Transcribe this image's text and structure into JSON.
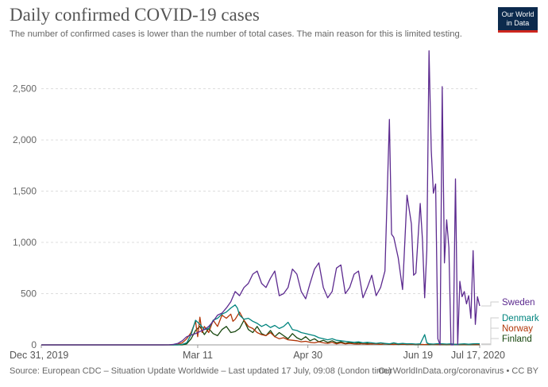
{
  "header": {
    "title": "Daily confirmed COVID-19 cases",
    "subtitle": "The number of confirmed cases is lower than the number of total cases. The main reason for this is limited testing."
  },
  "logo": {
    "line1": "Our World",
    "line2": "in Data"
  },
  "footer": {
    "source": "Source: European CDC – Situation Update Worldwide – Last updated 17 July, 09:08 (London time)",
    "credit": "OurWorldInData.org/coronavirus • CC BY"
  },
  "chart_data": {
    "type": "line",
    "title": "Daily confirmed COVID-19 cases",
    "x_ticks": [
      "Dec 31, 2019",
      "Mar 11",
      "Apr 30",
      "Jun 19",
      "Jul 17, 2020"
    ],
    "y_ticks": [
      "0",
      "500",
      "1,000",
      "1,500",
      "2,000",
      "2,500"
    ],
    "ylim": [
      0,
      2900
    ],
    "x_range_days": [
      0,
      199
    ],
    "grid": "horizontal dashed",
    "legend_placement": "right end labels",
    "x_day_offsets": [
      0,
      71,
      121,
      171,
      199
    ],
    "series": [
      {
        "name": "Sweden",
        "color": "#5c2a8f",
        "points": [
          [
            0,
            0
          ],
          [
            55,
            0
          ],
          [
            58,
            1
          ],
          [
            60,
            5
          ],
          [
            62,
            15
          ],
          [
            64,
            40
          ],
          [
            66,
            80
          ],
          [
            68,
            95
          ],
          [
            70,
            110
          ],
          [
            72,
            130
          ],
          [
            74,
            150
          ],
          [
            76,
            180
          ],
          [
            78,
            230
          ],
          [
            80,
            290
          ],
          [
            82,
            310
          ],
          [
            84,
            360
          ],
          [
            86,
            420
          ],
          [
            88,
            520
          ],
          [
            90,
            480
          ],
          [
            92,
            560
          ],
          [
            94,
            600
          ],
          [
            96,
            690
          ],
          [
            98,
            720
          ],
          [
            100,
            600
          ],
          [
            102,
            560
          ],
          [
            104,
            650
          ],
          [
            106,
            720
          ],
          [
            108,
            480
          ],
          [
            110,
            500
          ],
          [
            112,
            560
          ],
          [
            114,
            740
          ],
          [
            116,
            690
          ],
          [
            118,
            520
          ],
          [
            120,
            450
          ],
          [
            122,
            600
          ],
          [
            124,
            740
          ],
          [
            126,
            800
          ],
          [
            128,
            560
          ],
          [
            130,
            460
          ],
          [
            132,
            520
          ],
          [
            134,
            750
          ],
          [
            136,
            780
          ],
          [
            138,
            500
          ],
          [
            140,
            560
          ],
          [
            142,
            690
          ],
          [
            144,
            720
          ],
          [
            146,
            460
          ],
          [
            148,
            560
          ],
          [
            150,
            680
          ],
          [
            152,
            480
          ],
          [
            154,
            560
          ],
          [
            156,
            720
          ],
          [
            158,
            2200
          ],
          [
            159,
            1080
          ],
          [
            160,
            1050
          ],
          [
            162,
            850
          ],
          [
            164,
            540
          ],
          [
            166,
            1460
          ],
          [
            168,
            1180
          ],
          [
            169,
            680
          ],
          [
            170,
            700
          ],
          [
            172,
            1380
          ],
          [
            173,
            1030
          ],
          [
            174,
            460
          ],
          [
            175,
            920
          ],
          [
            176,
            2870
          ],
          [
            177,
            1900
          ],
          [
            178,
            1480
          ],
          [
            179,
            1570
          ],
          [
            180,
            60
          ],
          [
            181,
            0
          ],
          [
            182,
            2520
          ],
          [
            183,
            800
          ],
          [
            184,
            1220
          ],
          [
            185,
            950
          ],
          [
            186,
            0
          ],
          [
            187,
            0
          ],
          [
            188,
            1620
          ],
          [
            189,
            0
          ],
          [
            190,
            620
          ],
          [
            191,
            470
          ],
          [
            192,
            520
          ],
          [
            193,
            400
          ],
          [
            194,
            480
          ],
          [
            195,
            260
          ],
          [
            196,
            920
          ],
          [
            197,
            200
          ],
          [
            198,
            470
          ],
          [
            199,
            380
          ]
        ]
      },
      {
        "name": "Denmark",
        "color": "#00847e",
        "points": [
          [
            0,
            0
          ],
          [
            62,
            0
          ],
          [
            64,
            5
          ],
          [
            66,
            20
          ],
          [
            68,
            100
          ],
          [
            70,
            240
          ],
          [
            72,
            200
          ],
          [
            74,
            150
          ],
          [
            76,
            160
          ],
          [
            78,
            240
          ],
          [
            80,
            260
          ],
          [
            82,
            300
          ],
          [
            84,
            320
          ],
          [
            86,
            360
          ],
          [
            88,
            390
          ],
          [
            89,
            360
          ],
          [
            90,
            290
          ],
          [
            92,
            250
          ],
          [
            94,
            260
          ],
          [
            96,
            230
          ],
          [
            98,
            210
          ],
          [
            100,
            180
          ],
          [
            102,
            200
          ],
          [
            104,
            170
          ],
          [
            106,
            190
          ],
          [
            108,
            160
          ],
          [
            110,
            180
          ],
          [
            112,
            220
          ],
          [
            114,
            150
          ],
          [
            116,
            140
          ],
          [
            118,
            120
          ],
          [
            120,
            110
          ],
          [
            122,
            100
          ],
          [
            124,
            90
          ],
          [
            126,
            70
          ],
          [
            128,
            60
          ],
          [
            130,
            50
          ],
          [
            132,
            60
          ],
          [
            134,
            45
          ],
          [
            136,
            40
          ],
          [
            138,
            35
          ],
          [
            140,
            30
          ],
          [
            142,
            25
          ],
          [
            144,
            30
          ],
          [
            146,
            20
          ],
          [
            148,
            25
          ],
          [
            150,
            20
          ],
          [
            152,
            15
          ],
          [
            154,
            20
          ],
          [
            156,
            15
          ],
          [
            158,
            10
          ],
          [
            160,
            20
          ],
          [
            162,
            10
          ],
          [
            164,
            15
          ],
          [
            166,
            10
          ],
          [
            168,
            12
          ],
          [
            170,
            8
          ],
          [
            172,
            10
          ],
          [
            174,
            100
          ],
          [
            175,
            20
          ],
          [
            176,
            10
          ],
          [
            178,
            8
          ],
          [
            180,
            12
          ],
          [
            182,
            10
          ],
          [
            184,
            8
          ],
          [
            186,
            10
          ],
          [
            188,
            5
          ],
          [
            190,
            8
          ],
          [
            192,
            10
          ],
          [
            194,
            6
          ],
          [
            196,
            10
          ],
          [
            198,
            12
          ],
          [
            199,
            10
          ]
        ]
      },
      {
        "name": "Norway",
        "color": "#b13507",
        "points": [
          [
            0,
            0
          ],
          [
            60,
            0
          ],
          [
            62,
            5
          ],
          [
            64,
            20
          ],
          [
            66,
            60
          ],
          [
            68,
            120
          ],
          [
            70,
            230
          ],
          [
            71,
            80
          ],
          [
            72,
            270
          ],
          [
            73,
            120
          ],
          [
            74,
            180
          ],
          [
            76,
            120
          ],
          [
            78,
            240
          ],
          [
            80,
            180
          ],
          [
            82,
            290
          ],
          [
            84,
            260
          ],
          [
            86,
            300
          ],
          [
            87,
            230
          ],
          [
            88,
            250
          ],
          [
            90,
            320
          ],
          [
            92,
            240
          ],
          [
            94,
            180
          ],
          [
            96,
            160
          ],
          [
            98,
            120
          ],
          [
            100,
            100
          ],
          [
            102,
            90
          ],
          [
            104,
            120
          ],
          [
            106,
            80
          ],
          [
            108,
            60
          ],
          [
            110,
            70
          ],
          [
            112,
            50
          ],
          [
            114,
            45
          ],
          [
            116,
            40
          ],
          [
            118,
            30
          ],
          [
            120,
            35
          ],
          [
            122,
            25
          ],
          [
            124,
            20
          ],
          [
            126,
            30
          ],
          [
            128,
            20
          ],
          [
            130,
            15
          ],
          [
            132,
            25
          ],
          [
            134,
            10
          ],
          [
            136,
            20
          ],
          [
            138,
            10
          ],
          [
            140,
            15
          ],
          [
            142,
            10
          ],
          [
            144,
            8
          ],
          [
            146,
            12
          ],
          [
            148,
            6
          ],
          [
            150,
            10
          ],
          [
            152,
            8
          ],
          [
            154,
            5
          ],
          [
            156,
            12
          ],
          [
            158,
            6
          ],
          [
            160,
            4
          ],
          [
            162,
            8
          ],
          [
            164,
            6
          ],
          [
            166,
            5
          ],
          [
            168,
            4
          ],
          [
            170,
            6
          ],
          [
            172,
            5
          ],
          [
            174,
            3
          ],
          [
            176,
            8
          ],
          [
            178,
            4
          ],
          [
            180,
            3
          ],
          [
            182,
            5
          ],
          [
            184,
            4
          ],
          [
            186,
            3
          ],
          [
            188,
            6
          ],
          [
            190,
            4
          ],
          [
            192,
            2
          ],
          [
            194,
            5
          ],
          [
            196,
            3
          ],
          [
            198,
            4
          ],
          [
            199,
            3
          ]
        ]
      },
      {
        "name": "Finland",
        "color": "#18470f",
        "points": [
          [
            0,
            0
          ],
          [
            64,
            0
          ],
          [
            66,
            10
          ],
          [
            68,
            60
          ],
          [
            70,
            140
          ],
          [
            72,
            180
          ],
          [
            74,
            100
          ],
          [
            76,
            160
          ],
          [
            78,
            110
          ],
          [
            80,
            90
          ],
          [
            82,
            150
          ],
          [
            84,
            180
          ],
          [
            86,
            120
          ],
          [
            88,
            130
          ],
          [
            90,
            160
          ],
          [
            92,
            240
          ],
          [
            94,
            150
          ],
          [
            96,
            120
          ],
          [
            98,
            180
          ],
          [
            100,
            110
          ],
          [
            102,
            90
          ],
          [
            104,
            140
          ],
          [
            106,
            80
          ],
          [
            108,
            120
          ],
          [
            110,
            90
          ],
          [
            112,
            60
          ],
          [
            114,
            110
          ],
          [
            116,
            70
          ],
          [
            118,
            50
          ],
          [
            120,
            80
          ],
          [
            122,
            40
          ],
          [
            124,
            60
          ],
          [
            126,
            30
          ],
          [
            128,
            45
          ],
          [
            130,
            25
          ],
          [
            132,
            40
          ],
          [
            134,
            20
          ],
          [
            136,
            30
          ],
          [
            138,
            15
          ],
          [
            140,
            25
          ],
          [
            142,
            12
          ],
          [
            144,
            20
          ],
          [
            146,
            10
          ],
          [
            148,
            15
          ],
          [
            150,
            8
          ],
          [
            152,
            12
          ],
          [
            154,
            6
          ],
          [
            156,
            10
          ],
          [
            158,
            5
          ],
          [
            160,
            8
          ],
          [
            162,
            4
          ],
          [
            164,
            6
          ],
          [
            166,
            3
          ],
          [
            168,
            5
          ],
          [
            170,
            2
          ],
          [
            172,
            4
          ],
          [
            174,
            3
          ],
          [
            176,
            2
          ],
          [
            178,
            4
          ],
          [
            180,
            2
          ],
          [
            182,
            3
          ],
          [
            184,
            1
          ],
          [
            186,
            2
          ],
          [
            188,
            3
          ],
          [
            190,
            1
          ],
          [
            192,
            2
          ],
          [
            194,
            1
          ],
          [
            196,
            2
          ],
          [
            198,
            1
          ],
          [
            199,
            2
          ]
        ]
      }
    ]
  }
}
